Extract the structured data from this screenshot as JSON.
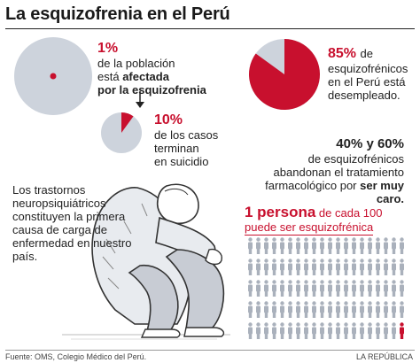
{
  "title": "La esquizofrenia en el Perú",
  "stat_population": {
    "value": "1%",
    "line1": "de la población",
    "line2_pre": "está ",
    "line2_bold": "afectada",
    "line3": "por la esquizofrenia"
  },
  "stat_suicide": {
    "value": "10%",
    "line1": "de los casos",
    "line2": "terminan",
    "line3": "en suicidio"
  },
  "stat_unemployed": {
    "value": "85%",
    "line1": "de",
    "line2": "esquizofrénicos",
    "line3": "en el Perú está",
    "line4": "desempleado."
  },
  "stat_treatment": {
    "value": "40% y 60%",
    "line1": "de esquizofrénicos",
    "line2": "abandonan el tratamiento",
    "line3_pre": "farmacológico por ",
    "line3_bold": "ser muy caro."
  },
  "disorders_text": "Los trastornos neuropsiquiátricos constituyen la primera causa de carga de enfermedad en nuestro país.",
  "persona": {
    "value": "1 persona",
    "line1_rest": " de cada 100",
    "line2": "puede ser esquizofrénica"
  },
  "footer": {
    "source": "Fuente: OMS, Colegio Médico del Perú.",
    "credit": "LA REPÚBLICA"
  },
  "colors": {
    "accent": "#c8102e",
    "pie_base": "#cdd3dc",
    "figure": "#c8ccd4"
  },
  "chart_data": [
    {
      "type": "pie",
      "categories": [
        "afectada",
        "resto"
      ],
      "values": [
        1,
        99
      ],
      "title": "1%"
    },
    {
      "type": "pie",
      "categories": [
        "suicidio",
        "resto"
      ],
      "values": [
        10,
        90
      ],
      "title": "10%"
    },
    {
      "type": "pie",
      "categories": [
        "desempleado",
        "resto"
      ],
      "values": [
        85,
        15
      ],
      "title": "85%"
    },
    {
      "type": "table",
      "title": "1 persona de cada 100",
      "values": [
        1,
        100
      ]
    }
  ]
}
